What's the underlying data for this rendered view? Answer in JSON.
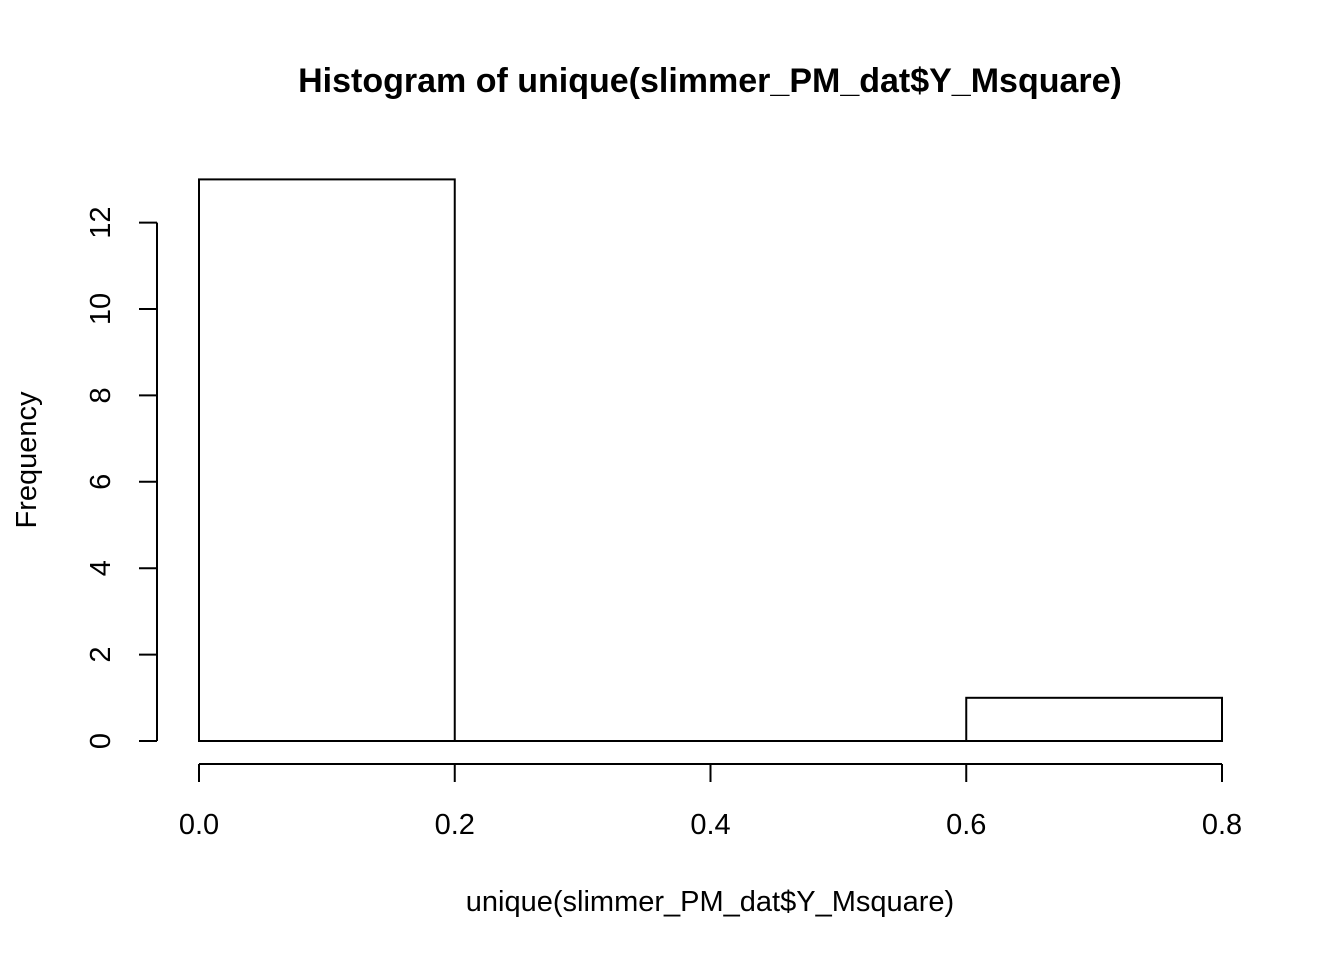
{
  "chart_data": {
    "type": "bar",
    "title": "Histogram of unique(slimmer_PM_dat$Y_Msquare)",
    "xlabel": "unique(slimmer_PM_dat$Y_Msquare)",
    "ylabel": "Frequency",
    "bins": [
      {
        "start": 0.0,
        "end": 0.2,
        "count": 13
      },
      {
        "start": 0.2,
        "end": 0.4,
        "count": 0
      },
      {
        "start": 0.4,
        "end": 0.6,
        "count": 0
      },
      {
        "start": 0.6,
        "end": 0.8,
        "count": 1
      }
    ],
    "xlim": [
      0.0,
      0.8
    ],
    "ylim": [
      0,
      13
    ],
    "x_ticks": [
      "0.0",
      "0.2",
      "0.4",
      "0.6",
      "0.8"
    ],
    "y_ticks": [
      "0",
      "2",
      "4",
      "6",
      "8",
      "10",
      "12"
    ],
    "grid": false,
    "bar_fill": "#ffffff",
    "bar_stroke": "#000000"
  }
}
